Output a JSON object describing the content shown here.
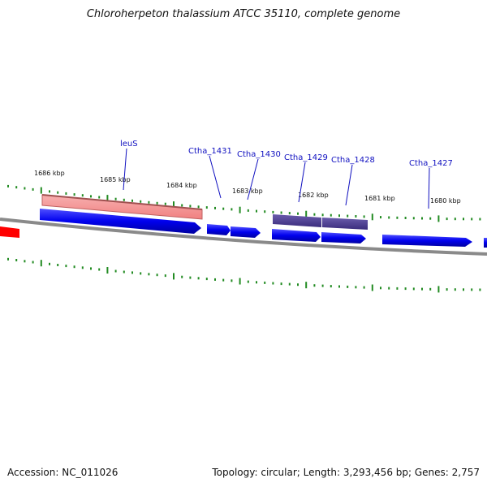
{
  "title": "Chloroherpeton thalassium ATCC 35110, complete genome",
  "footer": {
    "accession": "Accession: NC_011026",
    "summary": "Topology: circular; Length: 3,293,456 bp; Genes: 2,757"
  },
  "scale_labels": [
    "1686 kbp",
    "1685 kbp",
    "1684 kbp",
    "1683 kbp",
    "1682 kbp",
    "1681 kbp",
    "1680 kbp"
  ],
  "gene_labels": [
    "leuS",
    "Ctha_1431",
    "Ctha_1430",
    "Ctha_1429",
    "Ctha_1428",
    "Ctha_1427"
  ],
  "colors": {
    "cds": "#0000ee",
    "rna": "#f08080",
    "operon": "#4a3c8c",
    "highlight": "#ff0000",
    "backbone": "#808080",
    "ticks": "#228b22",
    "label": "#1010c0"
  }
}
